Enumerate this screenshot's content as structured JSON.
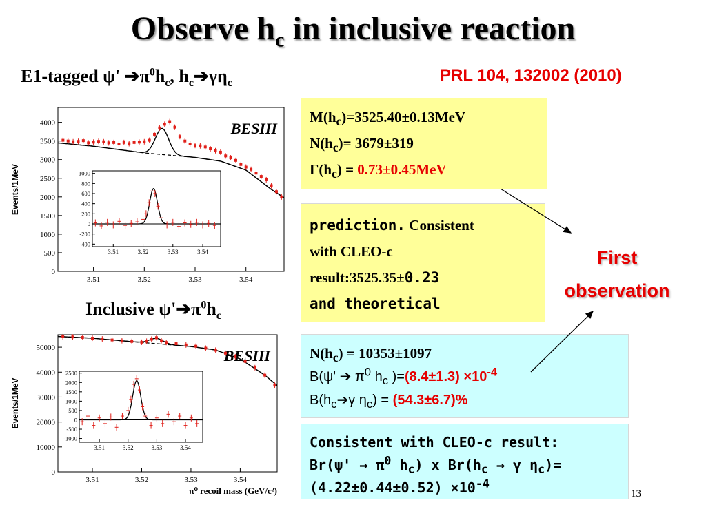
{
  "title": {
    "text": "Observe h",
    "sub": "c",
    "rest": " in inclusive reaction"
  },
  "e1_tagged": {
    "prefix": "E1-tagged ",
    "psi": "ψ'",
    "arrow1": "➔",
    "pi": "π",
    "zero": "0",
    "h": "h",
    "c": "c",
    "comma": ", h",
    "c2": "c",
    "arrow2": "➔",
    "gamma_eta": "γη",
    "c3": "c"
  },
  "reference": "PRL 104, 132002 (2010)",
  "inclusive": {
    "prefix": "Inclusive ",
    "psi": "ψ'",
    "arrow": "➔",
    "pi": "π",
    "zero": "0",
    "h": "h",
    "c": "c"
  },
  "yellow_box1": {
    "mass_label": "M(h",
    "mass_sub": "c",
    "mass_value": ")=3525.40±0.13MeV",
    "n_label": "N(h",
    "n_sub": "c",
    "n_value": ")= 3679±319",
    "width_label": "Γ(h",
    "width_sub": "c",
    "width_eq": ") = ",
    "width_value": "0.73±0.45MeV"
  },
  "yellow_box2": {
    "line1_a": "prediction.",
    "line1_b": " Consistent",
    "line2": "with CLEO-c",
    "line3_a": "result:3525.35±",
    "line3_b": "0.23",
    "line4": "and theoretical"
  },
  "cyan_box1": {
    "n_label": "N(h",
    "n_sub": "c",
    "n_value": ") = 10353±1097",
    "b1_a": "B(ψ' ➔ π",
    "b1_sup": "0",
    "b1_b": " h",
    "b1_sub": "c",
    "b1_c": " )=",
    "b1_val": "(8.4±1.3) ×10",
    "b1_exp": "-4",
    "b2_a": "B(h",
    "b2_sub": "c",
    "b2_b": "➔γ η",
    "b2_sub2": "c",
    "b2_c": ") = ",
    "b2_val": "(54.3±6.7)%"
  },
  "cyan_box2": {
    "line1": "Consistent with CLEO-c result:",
    "line2_a": " Br(ψ' → π",
    "line2_sup": "0",
    "line2_b": " h",
    "line2_sub": "c",
    "line2_c": ") x Br(h",
    "line2_sub2": "c",
    "line2_d": " → γ η",
    "line2_sub3": "c",
    "line2_e": ")=",
    "line3": "(4.22±0.44±0.52) ×10",
    "line3_exp": "-4"
  },
  "first_observation": {
    "line1": "First",
    "line2": "observation"
  },
  "page_number": "13",
  "chart_data": [
    {
      "type": "scatter",
      "watermark": "BESIII",
      "ylabel": "Events/1MeV",
      "xticks": [
        "3.51",
        "3.52",
        "3.53",
        "3.54"
      ],
      "yticks": [
        "0",
        "500",
        "1000",
        "1500",
        "2000",
        "2500",
        "3000",
        "3500",
        "4000"
      ],
      "xlim": [
        3.503,
        3.5475
      ],
      "ylim": [
        0,
        4400
      ],
      "points": [
        [
          3.504,
          3520
        ],
        [
          3.505,
          3500
        ],
        [
          3.506,
          3480
        ],
        [
          3.507,
          3490
        ],
        [
          3.508,
          3510
        ],
        [
          3.509,
          3450
        ],
        [
          3.51,
          3470
        ],
        [
          3.511,
          3490
        ],
        [
          3.512,
          3480
        ],
        [
          3.513,
          3450
        ],
        [
          3.514,
          3460
        ],
        [
          3.515,
          3420
        ],
        [
          3.516,
          3460
        ],
        [
          3.517,
          3430
        ],
        [
          3.518,
          3460
        ],
        [
          3.519,
          3470
        ],
        [
          3.52,
          3480
        ],
        [
          3.521,
          3520
        ],
        [
          3.522,
          3680
        ],
        [
          3.523,
          3850
        ],
        [
          3.524,
          3950
        ],
        [
          3.525,
          4020
        ],
        [
          3.526,
          3870
        ],
        [
          3.527,
          3620
        ],
        [
          3.528,
          3500
        ],
        [
          3.529,
          3420
        ],
        [
          3.53,
          3380
        ],
        [
          3.531,
          3370
        ],
        [
          3.532,
          3340
        ],
        [
          3.533,
          3290
        ],
        [
          3.534,
          3240
        ],
        [
          3.535,
          3200
        ],
        [
          3.536,
          3100
        ],
        [
          3.537,
          3050
        ],
        [
          3.538,
          2980
        ],
        [
          3.539,
          2870
        ],
        [
          3.54,
          2800
        ],
        [
          3.541,
          2740
        ],
        [
          3.542,
          2640
        ],
        [
          3.543,
          2550
        ],
        [
          3.544,
          2460
        ],
        [
          3.545,
          2300
        ],
        [
          3.546,
          2140
        ],
        [
          3.547,
          2000
        ]
      ],
      "background": [
        [
          3.503,
          3450
        ],
        [
          3.51,
          3360
        ],
        [
          3.52,
          3180
        ],
        [
          3.525,
          3120
        ],
        [
          3.53,
          3060
        ],
        [
          3.535,
          2960
        ],
        [
          3.54,
          2720
        ],
        [
          3.545,
          2200
        ],
        [
          3.5475,
          1980
        ]
      ],
      "inset": {
        "xticks": [
          "3.51",
          "3.52",
          "3.53",
          "3.54"
        ],
        "yticks": [
          "-400",
          "-200",
          "0",
          "200",
          "400",
          "600",
          "800",
          "1000"
        ],
        "xlim": [
          3.503,
          3.546
        ],
        "ylim": [
          -450,
          1050
        ],
        "points": [
          [
            3.504,
            20
          ],
          [
            3.506,
            -40
          ],
          [
            3.508,
            30
          ],
          [
            3.51,
            -20
          ],
          [
            3.512,
            50
          ],
          [
            3.514,
            -30
          ],
          [
            3.516,
            10
          ],
          [
            3.518,
            40
          ],
          [
            3.52,
            90
          ],
          [
            3.521,
            200
          ],
          [
            3.522,
            420
          ],
          [
            3.523,
            650
          ],
          [
            3.524,
            600
          ],
          [
            3.525,
            350
          ],
          [
            3.526,
            120
          ],
          [
            3.528,
            -20
          ],
          [
            3.53,
            30
          ],
          [
            3.532,
            -50
          ],
          [
            3.534,
            20
          ],
          [
            3.536,
            -10
          ],
          [
            3.538,
            30
          ],
          [
            3.54,
            -20
          ],
          [
            3.542,
            10
          ],
          [
            3.544,
            -30
          ]
        ],
        "peak": 3.5235,
        "amp": 700,
        "sigma": 0.0013
      }
    },
    {
      "type": "scatter",
      "watermark": "BESIII",
      "ylabel": "Events/1MeV",
      "xlabel": "π⁰ recoil mass (GeV/c²)",
      "xticks": [
        "3.51",
        "3.52",
        "3.53",
        "3.54"
      ],
      "yticks": [
        "0",
        "10000",
        "20000",
        "30000",
        "40000",
        "50000"
      ],
      "xlim": [
        3.503,
        3.5475
      ],
      "ylim": [
        0,
        55000
      ],
      "points": [
        [
          3.504,
          54200
        ],
        [
          3.506,
          54100
        ],
        [
          3.508,
          53900
        ],
        [
          3.51,
          53600
        ],
        [
          3.512,
          53300
        ],
        [
          3.514,
          52900
        ],
        [
          3.516,
          52600
        ],
        [
          3.518,
          52300
        ],
        [
          3.52,
          52000
        ],
        [
          3.521,
          52400
        ],
        [
          3.522,
          53200
        ],
        [
          3.523,
          53800
        ],
        [
          3.524,
          52600
        ],
        [
          3.525,
          51900
        ],
        [
          3.527,
          51400
        ],
        [
          3.529,
          50900
        ],
        [
          3.531,
          50400
        ],
        [
          3.533,
          49600
        ],
        [
          3.535,
          48800
        ],
        [
          3.537,
          47600
        ],
        [
          3.539,
          46200
        ],
        [
          3.541,
          44300
        ],
        [
          3.543,
          41800
        ],
        [
          3.545,
          38800
        ],
        [
          3.547,
          34800
        ]
      ],
      "background": [
        [
          3.503,
          54300
        ],
        [
          3.51,
          53600
        ],
        [
          3.52,
          51900
        ],
        [
          3.53,
          50300
        ],
        [
          3.535,
          48900
        ],
        [
          3.54,
          45300
        ],
        [
          3.545,
          38800
        ],
        [
          3.5475,
          34600
        ]
      ],
      "inset": {
        "xticks": [
          "3.51",
          "3.52",
          "3.53",
          "3.54"
        ],
        "yticks": [
          "-1000",
          "-500",
          "0",
          "500",
          "1000",
          "1500",
          "2000",
          "2500"
        ],
        "xlim": [
          3.503,
          3.546
        ],
        "ylim": [
          -1200,
          2600
        ],
        "points": [
          [
            3.504,
            -100
          ],
          [
            3.506,
            200
          ],
          [
            3.508,
            -300
          ],
          [
            3.51,
            100
          ],
          [
            3.512,
            -200
          ],
          [
            3.514,
            150
          ],
          [
            3.516,
            -400
          ],
          [
            3.518,
            200
          ],
          [
            3.52,
            500
          ],
          [
            3.521,
            1100
          ],
          [
            3.522,
            1900
          ],
          [
            3.523,
            2200
          ],
          [
            3.524,
            1600
          ],
          [
            3.525,
            700
          ],
          [
            3.526,
            200
          ],
          [
            3.528,
            -300
          ],
          [
            3.53,
            100
          ],
          [
            3.532,
            -200
          ],
          [
            3.534,
            300
          ],
          [
            3.536,
            -100
          ],
          [
            3.538,
            200
          ],
          [
            3.54,
            -300
          ],
          [
            3.542,
            100
          ],
          [
            3.544,
            -200
          ]
        ],
        "peak": 3.523,
        "amp": 2100,
        "sigma": 0.0014
      }
    }
  ]
}
